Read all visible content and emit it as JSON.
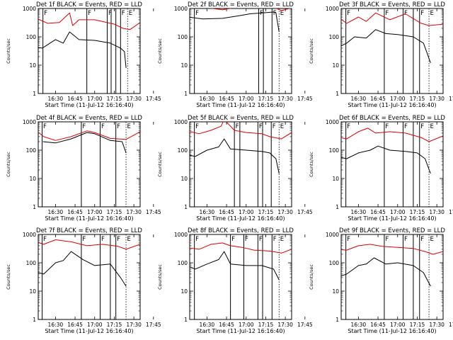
{
  "chart_data": [
    {
      "type": "line",
      "title": "Det 1f BLACK = Events, RED = LLD",
      "xlabel": "Start Time (11-Jul-12 16:16:40)",
      "ylabel": "Counts/sec",
      "yscale": "log",
      "ylim": [
        1,
        1000
      ],
      "xlim": [
        16.28,
        17.58
      ],
      "ytick_labels": [
        "1",
        "10",
        "100",
        "1000"
      ],
      "xtick_labels": [
        "16:30",
        "16:45",
        "17:00",
        "17:15",
        "17:30",
        "17:45"
      ],
      "region_flags": [
        {
          "label": "F",
          "x": 16.34
        },
        {
          "label": "F",
          "x": 16.9
        },
        {
          "label": "F",
          "x": 17.16
        },
        {
          "label": "F",
          "x": 17.33
        },
        {
          "label": "E",
          "x": 17.42
        }
      ],
      "vlines_solid": [
        16.34,
        16.9,
        17.16,
        17.21,
        17.27,
        17.33
      ],
      "vlines_dotted": [
        17.42
      ],
      "series": [
        {
          "name": "BLACK = Events",
          "color": "#000000",
          "x": [
            16.2,
            16.33,
            16.36,
            16.5,
            16.6,
            16.68,
            16.8,
            17.0,
            17.2,
            17.33,
            17.38,
            17.4
          ],
          "y": [
            45,
            40,
            45,
            80,
            60,
            150,
            80,
            75,
            60,
            40,
            30,
            8
          ]
        },
        {
          "name": "RED = LLD",
          "color": "#e00000",
          "x": [
            16.22,
            16.4,
            16.55,
            16.68,
            16.72,
            16.8,
            17.0,
            17.25,
            17.36,
            17.45,
            17.58
          ],
          "y": [
            500,
            300,
            320,
            700,
            250,
            400,
            400,
            280,
            200,
            180,
            320
          ]
        }
      ]
    },
    {
      "type": "line",
      "title": "Det 2f BLACK = Events, RED = LLD",
      "xlabel": "Start Time (11-Jul-12 16:16:40)",
      "ylabel": "Counts/sec",
      "yscale": "log",
      "ylim": [
        1,
        1000
      ],
      "xlim": [
        16.28,
        17.58
      ],
      "ytick_labels": [
        "1",
        "10",
        "100",
        "1000"
      ],
      "xtick_labels": [
        "16:30",
        "16:45",
        "17:00",
        "17:15",
        "17:30",
        "17:45"
      ],
      "region_flags": [
        {
          "label": "F",
          "x": 16.34
        },
        {
          "label": "F",
          "x": 17.16
        },
        {
          "label": "F",
          "x": 17.33
        },
        {
          "label": "E",
          "x": 17.42
        }
      ],
      "vlines_solid": [
        16.34,
        17.16,
        17.22,
        17.33
      ],
      "vlines_dotted": [
        17.42
      ],
      "series": [
        {
          "name": "BLACK = Events",
          "color": "#000000",
          "x": [
            16.25,
            16.45,
            16.7,
            16.9,
            17.05,
            17.2,
            17.35,
            17.38,
            17.42
          ],
          "y": [
            500,
            430,
            450,
            550,
            650,
            700,
            750,
            700,
            150
          ]
        },
        {
          "name": "RED = LLD",
          "color": "#e00000",
          "x": [
            16.25,
            16.45,
            16.7,
            16.95,
            17.15,
            17.35,
            17.45,
            17.58
          ],
          "y": [
            1300,
            1100,
            900,
            1200,
            1400,
            1100,
            850,
            1050
          ]
        }
      ]
    },
    {
      "type": "line",
      "title": "Det 3f BLACK = Events, RED = LLD",
      "xlabel": "Start Time (11-Jul-12 16:16:40)",
      "ylabel": "Counts/sec",
      "yscale": "log",
      "ylim": [
        1,
        1000
      ],
      "xlim": [
        16.28,
        17.58
      ],
      "ytick_labels": [
        "1",
        "10",
        "100",
        "1000"
      ],
      "xtick_labels": [
        "16:30",
        "16:45",
        "17:00",
        "17:15",
        "17:30",
        "17:45"
      ],
      "region_flags": [
        {
          "label": "F",
          "x": 16.34
        },
        {
          "label": "F",
          "x": 16.83
        },
        {
          "label": "F",
          "x": 17.07
        },
        {
          "label": "F",
          "x": 17.28
        },
        {
          "label": "E",
          "x": 17.4
        }
      ],
      "vlines_solid": [
        16.34,
        16.83,
        17.07,
        17.2,
        17.28
      ],
      "vlines_dotted": [
        17.4
      ],
      "series": [
        {
          "name": "BLACK = Events",
          "color": "#000000",
          "x": [
            16.22,
            16.35,
            16.45,
            16.6,
            16.72,
            16.85,
            17.0,
            17.2,
            17.33,
            17.38,
            17.42
          ],
          "y": [
            40,
            60,
            100,
            90,
            180,
            130,
            120,
            100,
            60,
            25,
            12
          ]
        },
        {
          "name": "RED = LLD",
          "color": "#e00000",
          "x": [
            16.22,
            16.35,
            16.5,
            16.6,
            16.72,
            16.9,
            17.1,
            17.3,
            17.4,
            17.58
          ],
          "y": [
            550,
            300,
            500,
            350,
            700,
            400,
            650,
            300,
            250,
            280
          ]
        }
      ]
    },
    {
      "type": "line",
      "title": "Det 4f BLACK = Events, RED = LLD",
      "xlabel": "Start Time (11-Jul-12 16:16:40)",
      "ylabel": "Counts/sec",
      "yscale": "log",
      "ylim": [
        1,
        1000
      ],
      "xlim": [
        16.28,
        17.58
      ],
      "ytick_labels": [
        "1",
        "10",
        "100",
        "1000"
      ],
      "xtick_labels": [
        "16:30",
        "16:45",
        "17:00",
        "17:15",
        "17:30",
        "17:45"
      ],
      "region_flags": [
        {
          "label": "F",
          "x": 16.33
        },
        {
          "label": "F",
          "x": 16.83
        },
        {
          "label": "F",
          "x": 17.07
        },
        {
          "label": "F",
          "x": 17.27
        },
        {
          "label": "E",
          "x": 17.4
        }
      ],
      "vlines_solid": [
        16.33,
        16.83,
        17.07,
        17.27
      ],
      "vlines_dotted": [
        17.4
      ],
      "series": [
        {
          "name": "BLACK = Events",
          "color": "#000000",
          "x": [
            16.34,
            16.5,
            16.7,
            16.9,
            17.0,
            17.2,
            17.35,
            17.4
          ],
          "y": [
            200,
            180,
            250,
            420,
            380,
            220,
            200,
            80
          ]
        },
        {
          "name": "RED = LLD",
          "color": "#e00000",
          "x": [
            16.2,
            16.35,
            16.5,
            16.7,
            16.9,
            17.0,
            17.2,
            17.4,
            17.58
          ],
          "y": [
            650,
            300,
            220,
            300,
            480,
            420,
            260,
            240,
            450
          ]
        }
      ]
    },
    {
      "type": "line",
      "title": "Det 5f BLACK = Events, RED = LLD",
      "xlabel": "Start Time (11-Jul-12 16:16:40)",
      "ylabel": "Counts/sec",
      "yscale": "log",
      "ylim": [
        1,
        1000
      ],
      "xlim": [
        16.28,
        17.58
      ],
      "ytick_labels": [
        "1",
        "10",
        "100",
        "1000"
      ],
      "xtick_labels": [
        "16:30",
        "16:45",
        "17:00",
        "17:15",
        "17:30",
        "17:45"
      ],
      "region_flags": [
        {
          "label": "F",
          "x": 16.34
        },
        {
          "label": "F",
          "x": 16.85
        },
        {
          "label": "F",
          "x": 17.15
        },
        {
          "label": "F",
          "x": 17.32
        },
        {
          "label": "E",
          "x": 17.42
        }
      ],
      "vlines_solid": [
        16.34,
        16.85,
        16.92,
        17.15,
        17.21,
        17.32
      ],
      "vlines_dotted": [
        17.42
      ],
      "series": [
        {
          "name": "BLACK = Events",
          "color": "#000000",
          "x": [
            16.24,
            16.35,
            16.5,
            16.65,
            16.72,
            16.8,
            17.0,
            17.2,
            17.3,
            17.38,
            17.42
          ],
          "y": [
            70,
            60,
            100,
            130,
            250,
            110,
            100,
            90,
            80,
            50,
            15
          ]
        },
        {
          "name": "RED = LLD",
          "color": "#e00000",
          "x": [
            16.22,
            16.4,
            16.55,
            16.68,
            16.72,
            16.85,
            17.0,
            17.2,
            17.3,
            17.45,
            17.58
          ],
          "y": [
            500,
            380,
            500,
            700,
            1200,
            500,
            420,
            380,
            300,
            250,
            420
          ]
        }
      ]
    },
    {
      "type": "line",
      "title": "Det 6f BLACK = Events, RED = LLD",
      "xlabel": "Start Time (11-Jul-12 16:16:40)",
      "ylabel": "Counts/sec",
      "yscale": "log",
      "ylim": [
        1,
        1000
      ],
      "xlim": [
        16.28,
        17.58
      ],
      "ytick_labels": [
        "1",
        "10",
        "100",
        "1000"
      ],
      "xtick_labels": [
        "16:30",
        "16:45",
        "17:00",
        "17:15",
        "17:30",
        "17:45"
      ],
      "region_flags": [
        {
          "label": "F",
          "x": 16.34
        },
        {
          "label": "F",
          "x": 16.83
        },
        {
          "label": "F",
          "x": 17.07
        },
        {
          "label": "F",
          "x": 17.28
        },
        {
          "label": "E",
          "x": 17.4
        }
      ],
      "vlines_solid": [
        16.34,
        16.83,
        17.07,
        17.2,
        17.28
      ],
      "vlines_dotted": [
        17.4
      ],
      "series": [
        {
          "name": "BLACK = Events",
          "color": "#000000",
          "x": [
            16.22,
            16.35,
            16.5,
            16.65,
            16.75,
            16.9,
            17.1,
            17.25,
            17.35,
            17.42
          ],
          "y": [
            60,
            50,
            80,
            100,
            140,
            100,
            90,
            80,
            50,
            15
          ]
        },
        {
          "name": "RED = LLD",
          "color": "#e00000",
          "x": [
            16.22,
            16.35,
            16.5,
            16.62,
            16.72,
            16.9,
            17.1,
            17.3,
            17.4,
            17.58
          ],
          "y": [
            300,
            250,
            450,
            600,
            400,
            450,
            400,
            280,
            200,
            320
          ]
        }
      ]
    },
    {
      "type": "line",
      "title": "Det 7f BLACK = Events, RED = LLD",
      "xlabel": "Start Time (11-Jul-12 16:16:40)",
      "ylabel": "Counts/sec",
      "yscale": "log",
      "ylim": [
        1,
        1000
      ],
      "xlim": [
        16.28,
        17.58
      ],
      "ytick_labels": [
        "1",
        "10",
        "100",
        "1000"
      ],
      "xtick_labels": [
        "16:30",
        "16:45",
        "17:00",
        "17:15",
        "17:30",
        "17:45"
      ],
      "region_flags": [
        {
          "label": "F",
          "x": 16.33
        },
        {
          "label": "F",
          "x": 16.83
        },
        {
          "label": "F",
          "x": 17.07
        },
        {
          "label": "F",
          "x": 17.27
        },
        {
          "label": "E",
          "x": 17.4
        }
      ],
      "vlines_solid": [
        16.33,
        16.83,
        17.07,
        17.2,
        17.27
      ],
      "vlines_dotted": [
        17.4
      ],
      "series": [
        {
          "name": "BLACK = Events",
          "color": "#000000",
          "x": [
            16.22,
            16.35,
            16.5,
            16.6,
            16.7,
            16.85,
            17.0,
            17.2,
            17.33,
            17.4
          ],
          "y": [
            50,
            40,
            100,
            120,
            250,
            130,
            80,
            90,
            30,
            15
          ]
        },
        {
          "name": "RED = LLD",
          "color": "#e00000",
          "x": [
            16.22,
            16.35,
            16.5,
            16.7,
            16.9,
            17.1,
            17.3,
            17.4,
            17.58
          ],
          "y": [
            600,
            450,
            650,
            550,
            400,
            450,
            380,
            300,
            450
          ]
        }
      ]
    },
    {
      "type": "line",
      "title": "Det 8f BLACK = Events, RED = LLD",
      "xlabel": "Start Time (11-Jul-12 16:16:40)",
      "ylabel": "Counts/sec",
      "yscale": "log",
      "ylim": [
        1,
        1000
      ],
      "xlim": [
        16.28,
        17.58
      ],
      "ytick_labels": [
        "1",
        "10",
        "100",
        "1000"
      ],
      "xtick_labels": [
        "16:30",
        "16:45",
        "17:00",
        "17:15",
        "17:30",
        "17:45"
      ],
      "region_flags": [
        {
          "label": "F",
          "x": 16.34
        },
        {
          "label": "F",
          "x": 16.8
        },
        {
          "label": "F",
          "x": 16.97
        },
        {
          "label": "F",
          "x": 17.15
        },
        {
          "label": "F",
          "x": 17.33
        },
        {
          "label": "E",
          "x": 17.42
        }
      ],
      "vlines_solid": [
        16.34,
        16.8,
        16.97,
        17.15,
        17.21,
        17.33
      ],
      "vlines_dotted": [
        17.42
      ],
      "series": [
        {
          "name": "BLACK = Events",
          "color": "#000000",
          "x": [
            16.24,
            16.35,
            16.5,
            16.65,
            16.72,
            16.8,
            17.0,
            17.2,
            17.35,
            17.42
          ],
          "y": [
            80,
            60,
            90,
            130,
            250,
            90,
            80,
            80,
            60,
            25
          ]
        },
        {
          "name": "RED = LLD",
          "color": "#e00000",
          "x": [
            16.22,
            16.4,
            16.55,
            16.7,
            16.8,
            16.95,
            17.1,
            17.3,
            17.45,
            17.58
          ],
          "y": [
            350,
            300,
            450,
            500,
            400,
            350,
            280,
            260,
            220,
            300
          ]
        }
      ]
    },
    {
      "type": "line",
      "title": "Det 9f BLACK = Events, RED = LLD",
      "xlabel": "Start Time (11-Jul-12 16:16:40)",
      "ylabel": "Counts/sec",
      "yscale": "log",
      "ylim": [
        1,
        1000
      ],
      "xlim": [
        16.28,
        17.58
      ],
      "ytick_labels": [
        "1",
        "10",
        "100",
        "1000"
      ],
      "xtick_labels": [
        "16:30",
        "16:45",
        "17:00",
        "17:15",
        "17:30",
        "17:45"
      ],
      "region_flags": [
        {
          "label": "F",
          "x": 16.34
        },
        {
          "label": "F",
          "x": 16.83
        },
        {
          "label": "F",
          "x": 17.07
        },
        {
          "label": "F",
          "x": 17.28
        },
        {
          "label": "E",
          "x": 17.4
        }
      ],
      "vlines_solid": [
        16.34,
        16.83,
        17.07,
        17.2,
        17.28
      ],
      "vlines_dotted": [
        17.4
      ],
      "series": [
        {
          "name": "BLACK = Events",
          "color": "#000000",
          "x": [
            16.22,
            16.35,
            16.5,
            16.6,
            16.7,
            16.85,
            17.0,
            17.2,
            17.33,
            17.42
          ],
          "y": [
            30,
            40,
            80,
            90,
            150,
            90,
            100,
            80,
            45,
            15
          ]
        },
        {
          "name": "RED = LLD",
          "color": "#e00000",
          "x": [
            16.22,
            16.35,
            16.5,
            16.65,
            16.8,
            17.0,
            17.2,
            17.35,
            17.45,
            17.58
          ],
          "y": [
            300,
            280,
            400,
            450,
            380,
            350,
            320,
            250,
            200,
            250
          ]
        }
      ]
    }
  ]
}
